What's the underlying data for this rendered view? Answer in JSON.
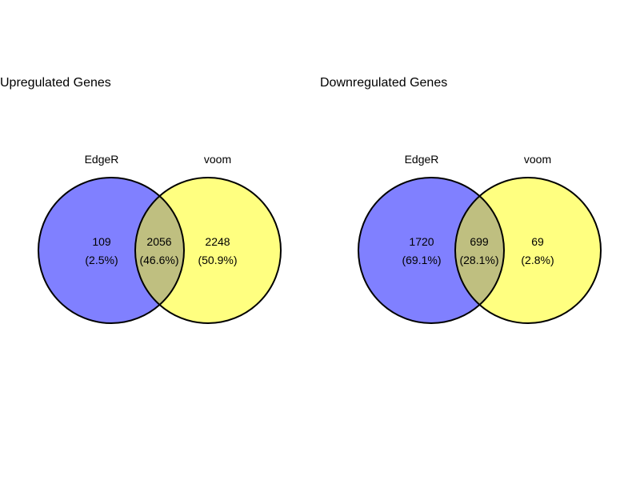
{
  "chart_data": [
    {
      "type": "venn",
      "title": "Upregulated Genes",
      "sets": [
        {
          "name": "EdgeR",
          "color": "#8080ff"
        },
        {
          "name": "voom",
          "color": "#ffff80"
        }
      ],
      "overlap_color": "#bfbf80",
      "regions": {
        "left_only": {
          "count": "109",
          "percent": "(2.5%)"
        },
        "both": {
          "count": "2056",
          "percent": "(46.6%)"
        },
        "right_only": {
          "count": "2248",
          "percent": "(50.9%)"
        }
      }
    },
    {
      "type": "venn",
      "title": "Downregulated Genes",
      "sets": [
        {
          "name": "EdgeR",
          "color": "#8080ff"
        },
        {
          "name": "voom",
          "color": "#ffff80"
        }
      ],
      "overlap_color": "#bfbf80",
      "regions": {
        "left_only": {
          "count": "1720",
          "percent": "(69.1%)"
        },
        "both": {
          "count": "699",
          "percent": "(28.1%)"
        },
        "right_only": {
          "count": "69",
          "percent": "(2.8%)"
        }
      }
    }
  ]
}
